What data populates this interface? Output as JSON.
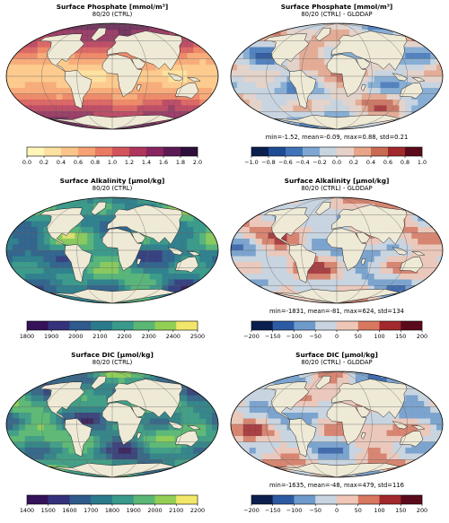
{
  "chart_data": [
    {
      "type": "heatmap",
      "title": "Surface Phosphate [mmol/m³]",
      "subtitle": "80/20 (CTRL)",
      "projection": "mollweide",
      "colormap": [
        "#fff6b8",
        "#fde1a0",
        "#fbc58a",
        "#f6a274",
        "#ea7a62",
        "#d3545d",
        "#b0355e",
        "#88245f",
        "#5c1a55",
        "#2e0f3b"
      ],
      "colorbar": {
        "min": 0.0,
        "max": 2.0,
        "ticks": [
          "0.0",
          "0.2",
          "0.4",
          "0.6",
          "0.8",
          "1.0",
          "1.2",
          "1.4",
          "1.6",
          "1.8",
          "2.0"
        ]
      }
    },
    {
      "type": "heatmap",
      "title": "Surface Phosphate [mmol/m³]",
      "subtitle": "80/20 (CTRL) - GLODAP",
      "projection": "mollweide",
      "colormap": [
        "#0b1f4e",
        "#1f4a94",
        "#3f74b8",
        "#7da7d2",
        "#c8d4e0",
        "#e8d2c8",
        "#e7a58a",
        "#c96a53",
        "#a1282c",
        "#5b0a1b"
      ],
      "colorbar": {
        "min": -1.0,
        "max": 1.0,
        "ticks": [
          "−1.0",
          "−0.8",
          "−0.6",
          "−0.4",
          "−0.2",
          "0.0",
          "0.2",
          "0.4",
          "0.6",
          "0.8",
          "1.0"
        ]
      },
      "stats": "min=-1.52, mean=-0.09, max=0.88, std=0.21"
    },
    {
      "type": "heatmap",
      "title": "Surface Alkalinity [μmol/kg]",
      "subtitle": "80/20 (CTRL)",
      "projection": "mollweide",
      "colormap": [
        "#35125a",
        "#34327c",
        "#2f5a8c",
        "#2b7b8c",
        "#39998a",
        "#5bb775",
        "#93cf55",
        "#f2e76a"
      ],
      "colorbar": {
        "min": 1800,
        "max": 2500,
        "ticks": [
          "1800",
          "1900",
          "2000",
          "2100",
          "2200",
          "2300",
          "2400",
          "2500"
        ]
      }
    },
    {
      "type": "heatmap",
      "title": "Surface Alkalinity [μmol/kg]",
      "subtitle": "80/20 (CTRL) - GLODAP",
      "projection": "mollweide",
      "colormap": [
        "#0b1f4e",
        "#2d5ba3",
        "#6e9bcb",
        "#c8d4e0",
        "#f0c7b6",
        "#d8785f",
        "#a1282c",
        "#5b0a1b"
      ],
      "colorbar": {
        "min": -200,
        "max": 200,
        "ticks": [
          "−200",
          "−150",
          "−100",
          "−50",
          "0",
          "50",
          "100",
          "150",
          "200"
        ]
      },
      "stats": "min=-1831, mean=-81, max=624, std=134"
    },
    {
      "type": "heatmap",
      "title": "Surface DIC [μmol/kg]",
      "subtitle": "80/20 (CTRL)",
      "projection": "mollweide",
      "colormap": [
        "#35125a",
        "#34327c",
        "#2f5a8c",
        "#2b7b8c",
        "#39998a",
        "#5bb775",
        "#93cf55",
        "#f2e76a"
      ],
      "colorbar": {
        "min": 1400,
        "max": 2200,
        "ticks": [
          "1400",
          "1500",
          "1600",
          "1700",
          "1800",
          "1900",
          "2000",
          "2100",
          "2200"
        ]
      }
    },
    {
      "type": "heatmap",
      "title": "Surface DIC [μmol/kg]",
      "subtitle": "80/20 (CTRL) - GLODAP",
      "projection": "mollweide",
      "colormap": [
        "#0b1f4e",
        "#2d5ba3",
        "#6e9bcb",
        "#c8d4e0",
        "#f0c7b6",
        "#d8785f",
        "#a1282c",
        "#5b0a1b"
      ],
      "colorbar": {
        "min": -200,
        "max": 200,
        "ticks": [
          "−200",
          "−150",
          "−100",
          "−50",
          "0",
          "50",
          "100",
          "150",
          "200"
        ]
      },
      "stats": "min=-1635, mean=-48, max=479, std=116"
    }
  ],
  "land_color": "#efead6",
  "ocean_base": [
    "#fde7a3",
    "#c6d3df",
    "#4fa79d",
    "#c6d3df",
    "#7dbf78",
    "#c6d3df"
  ]
}
